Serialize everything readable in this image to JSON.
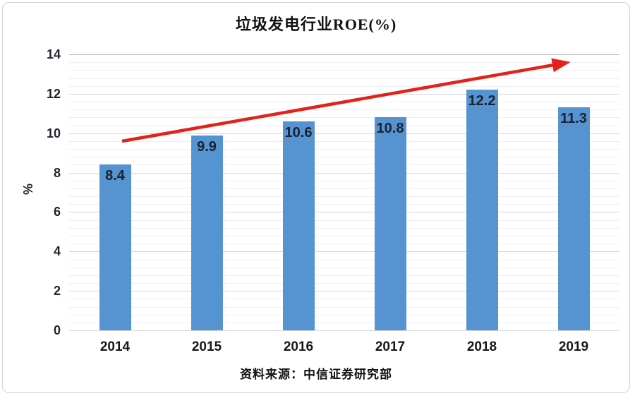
{
  "chart_data": {
    "type": "bar",
    "title": "垃圾发电行业ROE(%)",
    "ylabel": "%",
    "xlabel": "",
    "categories": [
      "2014",
      "2015",
      "2016",
      "2017",
      "2018",
      "2019"
    ],
    "values": [
      8.4,
      9.9,
      10.6,
      10.8,
      12.2,
      11.3
    ],
    "bar_labels": [
      "8.4",
      "9.9",
      "10.6",
      "10.8",
      "12.2",
      "11.3"
    ],
    "ylim": [
      0,
      14
    ],
    "y_major_ticks": [
      0,
      2,
      4,
      6,
      8,
      10,
      12,
      14
    ],
    "y_minor_unit": 0.4,
    "grid": "horizontal major and minor, no vertical grid",
    "legend": "none",
    "bar_color": "#5594D0",
    "bar_label_color": "#1a2230",
    "trend_arrow_color": "#E2231A",
    "source": "资料来源：中信证券研究部"
  }
}
